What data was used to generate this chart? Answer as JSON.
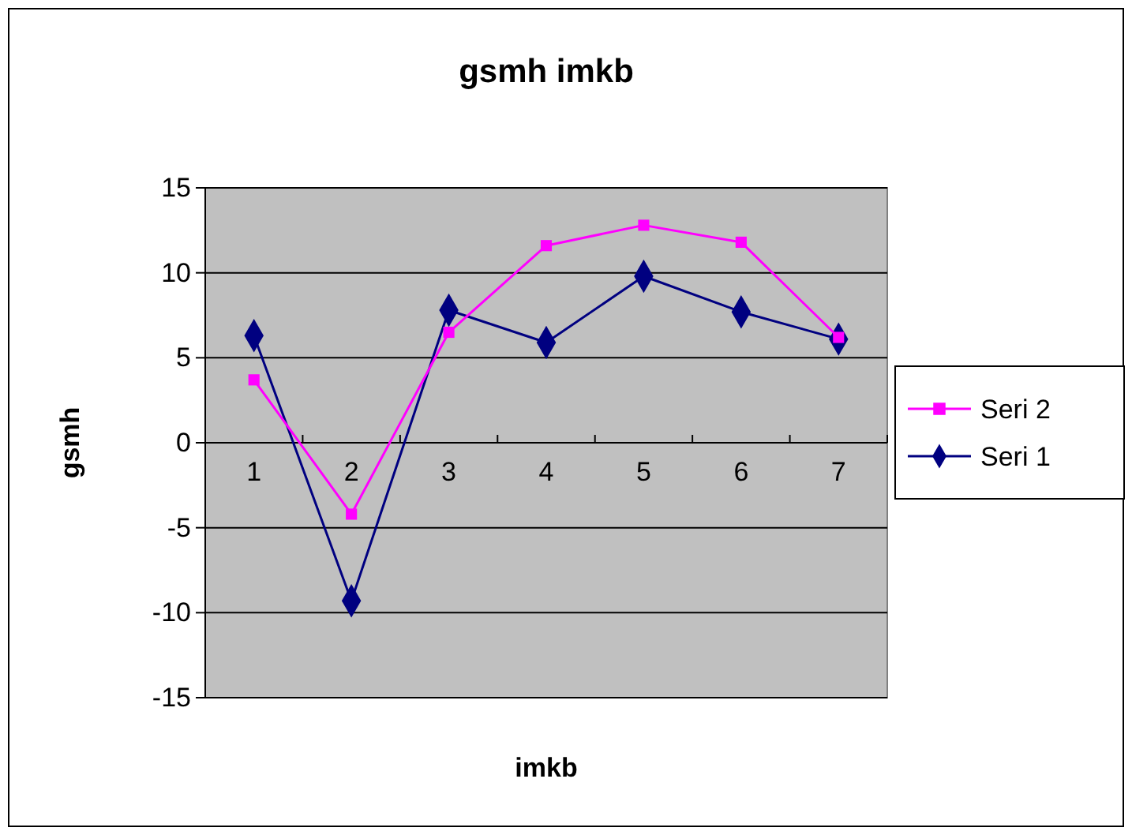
{
  "chart_data": {
    "type": "line",
    "title": "gsmh imkb",
    "xlabel": "imkb",
    "ylabel": "gsmh",
    "categories": [
      "1",
      "2",
      "3",
      "4",
      "5",
      "6",
      "7"
    ],
    "series": [
      {
        "name": "Seri 2",
        "color": "#ff00ff",
        "marker": "square",
        "values": [
          3.7,
          -4.2,
          6.5,
          11.6,
          12.8,
          11.8,
          6.2
        ]
      },
      {
        "name": "Seri 1",
        "color": "#000080",
        "marker": "diamond",
        "values": [
          6.3,
          -9.3,
          7.8,
          5.9,
          9.8,
          7.7,
          6.1
        ]
      }
    ],
    "ylim": [
      -15,
      15
    ],
    "yticks": [
      -15,
      -10,
      -5,
      0,
      5,
      10,
      15
    ],
    "grid": "y",
    "legend": "right"
  }
}
